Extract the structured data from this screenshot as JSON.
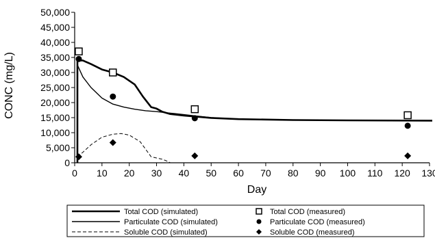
{
  "chart_data": {
    "type": "line",
    "xlabel": "Day",
    "ylabel": "CONC (mg/L)",
    "xlim": [
      0,
      130
    ],
    "ylim": [
      0,
      50000
    ],
    "x_ticks": [
      0,
      10,
      20,
      30,
      40,
      50,
      60,
      70,
      80,
      90,
      100,
      110,
      120,
      130
    ],
    "y_ticks": [
      0,
      5000,
      10000,
      15000,
      20000,
      25000,
      30000,
      35000,
      40000,
      45000,
      50000
    ],
    "x_tick_labels": [
      "0",
      "10",
      "20",
      "30",
      "40",
      "50",
      "60",
      "70",
      "80",
      "90",
      "100",
      "110",
      "120",
      "130"
    ],
    "y_tick_labels": [
      "0",
      "5,000",
      "10,000",
      "15,000",
      "20,000",
      "25,000",
      "30,000",
      "35,000",
      "40,000",
      "45,000",
      "50,000"
    ],
    "grid": false,
    "legend_position": "bottom",
    "series": [
      {
        "name": "Total COD (simulated)",
        "kind": "line",
        "style": "solid-thick",
        "x": [
          1,
          1,
          3,
          6,
          10,
          14,
          18,
          22,
          25,
          28,
          30,
          32,
          35,
          40,
          45,
          50,
          60,
          80,
          100,
          131
        ],
        "y": [
          0,
          34000,
          34000,
          32800,
          31000,
          30000,
          28500,
          26000,
          22000,
          18500,
          18000,
          17000,
          16200,
          15700,
          15300,
          14900,
          14500,
          14200,
          14100,
          14000
        ]
      },
      {
        "name": "Particulate COD (simulated)",
        "kind": "line",
        "style": "solid-thin",
        "x": [
          1,
          3,
          6,
          10,
          14,
          18,
          22,
          26,
          30,
          35,
          40,
          45,
          50,
          60,
          80,
          100,
          131
        ],
        "y": [
          32500,
          28500,
          25000,
          21500,
          19500,
          18500,
          17800,
          17300,
          17000,
          16500,
          16000,
          15500,
          15000,
          14500,
          14200,
          14100,
          14000
        ]
      },
      {
        "name": "Soluble COD (simulated)",
        "kind": "line",
        "style": "dashed",
        "x": [
          1,
          3,
          6,
          10,
          14,
          17,
          20,
          24,
          28,
          30,
          32,
          34,
          35
        ],
        "y": [
          2000,
          3500,
          6000,
          8500,
          9500,
          9700,
          9200,
          7000,
          2000,
          1600,
          1200,
          500,
          0
        ]
      },
      {
        "name": "Total COD (measured)",
        "kind": "points",
        "marker": "open-square",
        "x": [
          1.5,
          14,
          44,
          122
        ],
        "y": [
          37000,
          30000,
          17800,
          15800
        ]
      },
      {
        "name": "Particulate COD (measured)",
        "kind": "points",
        "marker": "filled-circle",
        "x": [
          1.5,
          14,
          44,
          122
        ],
        "y": [
          34500,
          22000,
          14800,
          12300
        ]
      },
      {
        "name": "Soluble COD (measured)",
        "kind": "points",
        "marker": "filled-diamond",
        "x": [
          1.5,
          14,
          44,
          122
        ],
        "y": [
          2000,
          6700,
          2300,
          2300
        ]
      }
    ]
  }
}
